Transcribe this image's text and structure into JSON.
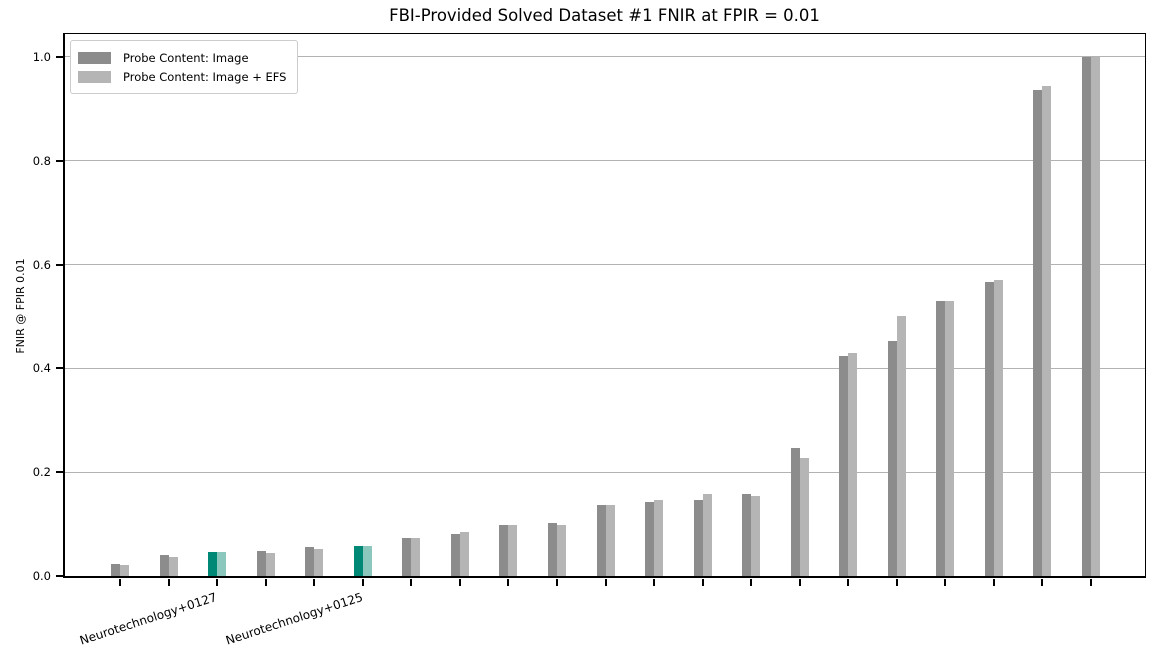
{
  "title": "FBI-Provided Solved Dataset #1 FNIR at FPIR = 0.01",
  "ylabel": "FNIR @ FPIR 0.01",
  "legend": {
    "items": [
      {
        "label": "Probe Content: Image",
        "color": "#8c8c8c"
      },
      {
        "label": "Probe Content: Image + EFS",
        "color": "#b5b5b5"
      }
    ]
  },
  "colors": {
    "bar_dark": "#8c8c8c",
    "bar_light": "#b5b5b5",
    "highlight_dark": "#008876",
    "highlight_light": "#8bc7bd",
    "gridline": "#b2b2b2",
    "axis": "#000000",
    "background": "#ffffff"
  },
  "chart_data": {
    "type": "bar",
    "title": "FBI-Provided Solved Dataset #1 FNIR at FPIR = 0.01",
    "xlabel": "",
    "ylabel": "FNIR @ FPIR 0.01",
    "ylim": [
      0,
      1.05
    ],
    "yticks": [
      0.0,
      0.2,
      0.4,
      0.6,
      0.8,
      1.0
    ],
    "grid": "horizontal",
    "legend_position": "upper left",
    "categories": [
      "",
      "",
      "Neurotechnology+0127",
      "",
      "",
      "Neurotechnology+0125",
      "",
      "",
      "",
      "",
      "",
      "",
      "",
      "",
      "",
      "",
      "",
      "",
      "",
      "",
      ""
    ],
    "highlighted_indices": [
      2,
      5
    ],
    "series": [
      {
        "name": "Probe Content: Image",
        "color": "#8c8c8c",
        "highlight_color": "#008876",
        "values": [
          0.023,
          0.04,
          0.047,
          0.049,
          0.055,
          0.058,
          0.073,
          0.08,
          0.098,
          0.102,
          0.137,
          0.142,
          0.147,
          0.158,
          0.246,
          0.423,
          0.453,
          0.53,
          0.567,
          0.937,
          1.0
        ]
      },
      {
        "name": "Probe Content: Image + EFS",
        "color": "#b5b5b5",
        "highlight_color": "#8bc7bd",
        "values": [
          0.022,
          0.036,
          0.047,
          0.044,
          0.052,
          0.058,
          0.073,
          0.085,
          0.098,
          0.098,
          0.137,
          0.146,
          0.158,
          0.155,
          0.228,
          0.429,
          0.5,
          0.53,
          0.571,
          0.945,
          1.0
        ]
      }
    ]
  }
}
